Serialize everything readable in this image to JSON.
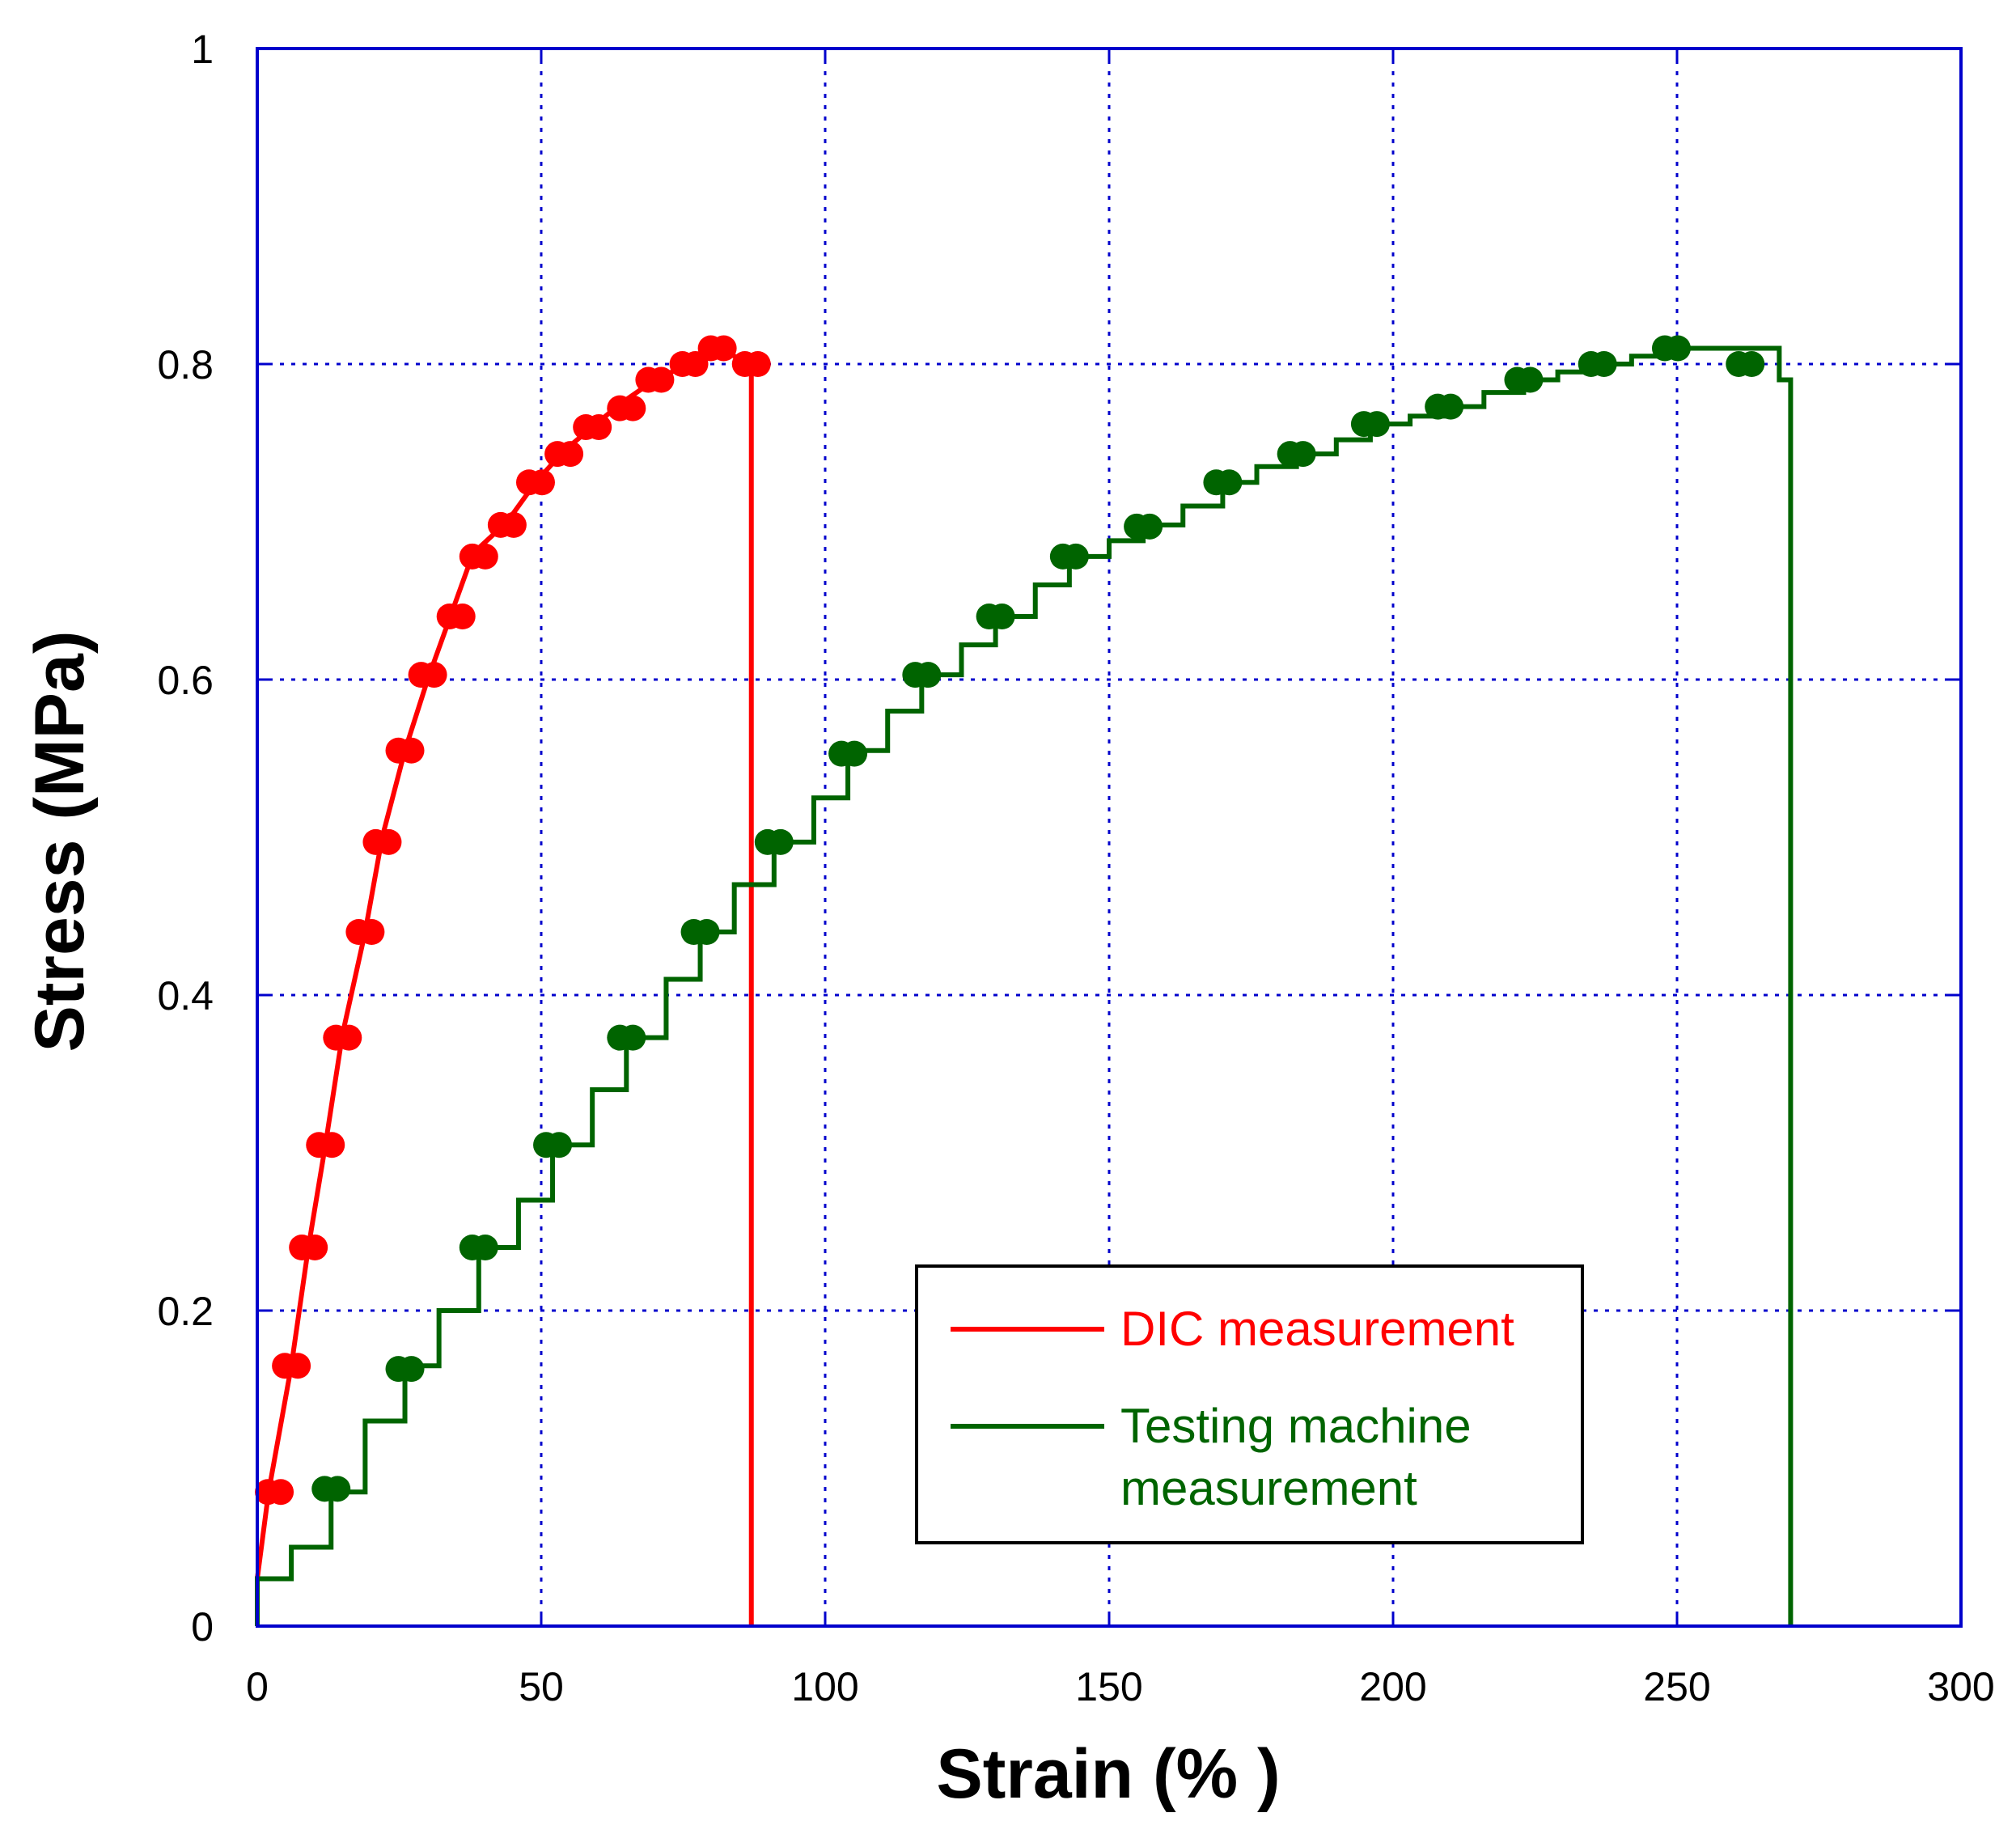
{
  "chart_data": {
    "type": "line",
    "title": "",
    "xlabel": "Strain (% )",
    "ylabel": "Stress (MPa)",
    "xlim": [
      0,
      300
    ],
    "ylim": [
      0,
      1
    ],
    "x_ticks": [
      0,
      50,
      100,
      150,
      200,
      250,
      300
    ],
    "y_ticks": [
      0,
      0.2,
      0.4,
      0.6,
      0.8,
      1
    ],
    "x_tick_labels": [
      "0",
      "50",
      "100",
      "150",
      "200",
      "250",
      "300"
    ],
    "y_tick_labels": [
      "0",
      "0.2",
      "0.4",
      "0.6",
      "0.8",
      "1"
    ],
    "grid": true,
    "legend_position": "bottom-right",
    "axis_color": "#0000cc",
    "series": [
      {
        "name": "DIC measurement",
        "label_lines": [
          "DIC measurement"
        ],
        "color": "#ff0000",
        "step": false,
        "line": [
          [
            0,
            0
          ],
          [
            0,
            0.03
          ],
          [
            2,
            0.085
          ],
          [
            6,
            0.165
          ],
          [
            9,
            0.24
          ],
          [
            12,
            0.305
          ],
          [
            15,
            0.375
          ],
          [
            19,
            0.44
          ],
          [
            22,
            0.5
          ],
          [
            26,
            0.555
          ],
          [
            30,
            0.6
          ],
          [
            34,
            0.64
          ],
          [
            38,
            0.68
          ],
          [
            44,
            0.7
          ],
          [
            49,
            0.725
          ],
          [
            54,
            0.745
          ],
          [
            59,
            0.76
          ],
          [
            64,
            0.775
          ],
          [
            70,
            0.79
          ],
          [
            76,
            0.8
          ],
          [
            81,
            0.81
          ],
          [
            87,
            0.8
          ],
          [
            87,
            0
          ]
        ],
        "markers": [
          [
            3,
            0.085
          ],
          [
            6,
            0.165
          ],
          [
            9,
            0.24
          ],
          [
            12,
            0.305
          ],
          [
            15,
            0.373
          ],
          [
            19,
            0.44
          ],
          [
            22,
            0.497
          ],
          [
            26,
            0.555
          ],
          [
            30,
            0.603
          ],
          [
            35,
            0.64
          ],
          [
            39,
            0.678
          ],
          [
            44,
            0.698
          ],
          [
            49,
            0.725
          ],
          [
            54,
            0.743
          ],
          [
            59,
            0.76
          ],
          [
            65,
            0.772
          ],
          [
            70,
            0.79
          ],
          [
            76,
            0.8
          ],
          [
            81,
            0.81
          ],
          [
            87,
            0.8
          ]
        ]
      },
      {
        "name": "Testing machine measurement",
        "label_lines": [
          "Testing machine",
          "measurement"
        ],
        "color": "#006400",
        "step": true,
        "line": [
          [
            0,
            0
          ],
          [
            0,
            0.03
          ],
          [
            6,
            0.05
          ],
          [
            13,
            0.085
          ],
          [
            19,
            0.13
          ],
          [
            26,
            0.165
          ],
          [
            32,
            0.2
          ],
          [
            39,
            0.24
          ],
          [
            46,
            0.27
          ],
          [
            52,
            0.305
          ],
          [
            59,
            0.34
          ],
          [
            65,
            0.373
          ],
          [
            72,
            0.41
          ],
          [
            78,
            0.44
          ],
          [
            84,
            0.47
          ],
          [
            91,
            0.497
          ],
          [
            98,
            0.525
          ],
          [
            104,
            0.555
          ],
          [
            111,
            0.58
          ],
          [
            117,
            0.603
          ],
          [
            124,
            0.622
          ],
          [
            130,
            0.64
          ],
          [
            137,
            0.66
          ],
          [
            143,
            0.678
          ],
          [
            150,
            0.688
          ],
          [
            156,
            0.698
          ],
          [
            163,
            0.71
          ],
          [
            170,
            0.725
          ],
          [
            176,
            0.735
          ],
          [
            183,
            0.743
          ],
          [
            190,
            0.752
          ],
          [
            196,
            0.762
          ],
          [
            203,
            0.767
          ],
          [
            209,
            0.773
          ],
          [
            216,
            0.782
          ],
          [
            223,
            0.79
          ],
          [
            229,
            0.795
          ],
          [
            236,
            0.8
          ],
          [
            242,
            0.805
          ],
          [
            249,
            0.81
          ],
          [
            255,
            0.81
          ],
          [
            263,
            0.81
          ],
          [
            268,
            0.79
          ],
          [
            270,
            0.78
          ],
          [
            270,
            0
          ]
        ],
        "markers": [
          [
            13,
            0.087
          ],
          [
            26,
            0.163
          ],
          [
            39,
            0.24
          ],
          [
            52,
            0.305
          ],
          [
            65,
            0.373
          ],
          [
            78,
            0.44
          ],
          [
            91,
            0.497
          ],
          [
            104,
            0.553
          ],
          [
            117,
            0.603
          ],
          [
            130,
            0.64
          ],
          [
            143,
            0.678
          ],
          [
            156,
            0.697
          ],
          [
            170,
            0.725
          ],
          [
            183,
            0.743
          ],
          [
            196,
            0.762
          ],
          [
            209,
            0.773
          ],
          [
            223,
            0.79
          ],
          [
            236,
            0.8
          ],
          [
            249,
            0.81
          ],
          [
            262,
            0.8
          ]
        ]
      }
    ]
  }
}
